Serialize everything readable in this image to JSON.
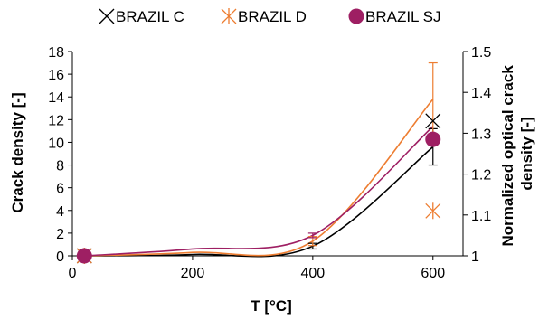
{
  "chart_data": {
    "type": "line",
    "xlabel": "T [°C]",
    "ylabel": "Crack density [-]",
    "y2label_lines": [
      "Normalized optical crack",
      "density [-]"
    ],
    "xlim": [
      0,
      650
    ],
    "ylim": [
      0,
      18
    ],
    "y2lim": [
      1,
      1.5
    ],
    "x_ticks": [
      "0",
      "200",
      "400",
      "600"
    ],
    "y_ticks": [
      "0",
      "2",
      "4",
      "6",
      "8",
      "10",
      "12",
      "14",
      "16",
      "18"
    ],
    "y2_ticks": [
      "1",
      "1.1",
      "1.2",
      "1.3",
      "1.4",
      "1.5"
    ],
    "grid": false,
    "legend_position": "top",
    "series": [
      {
        "name": "BRAZIL C",
        "color": "#000000",
        "marker": "x-cross",
        "line": [
          {
            "x": 20,
            "y": 0
          },
          {
            "x": 200,
            "y": 0.12
          },
          {
            "x": 400,
            "y": 0.85
          },
          {
            "x": 600,
            "y": 9.6
          }
        ],
        "errors": [
          {
            "x": 400,
            "y": 0.85,
            "lo": 0.6,
            "hi": 1.1
          },
          {
            "x": 600,
            "y": 9.6,
            "lo": 8.0,
            "hi": 11.2
          }
        ],
        "points_y2": [
          {
            "x": 20,
            "y": 1.0
          },
          {
            "x": 600,
            "y": 1.33
          }
        ]
      },
      {
        "name": "BRAZIL D",
        "color": "#ED7D31",
        "marker": "asterisk",
        "line": [
          {
            "x": 20,
            "y": 0
          },
          {
            "x": 200,
            "y": 0.3
          },
          {
            "x": 400,
            "y": 1.3
          },
          {
            "x": 600,
            "y": 13.8
          }
        ],
        "errors": [
          {
            "x": 400,
            "y": 1.3,
            "lo": 0.9,
            "hi": 1.7
          },
          {
            "x": 600,
            "y": 13.8,
            "lo": 10.6,
            "hi": 17.0
          }
        ],
        "points_y2": [
          {
            "x": 20,
            "y": 1.0
          },
          {
            "x": 600,
            "y": 1.11
          }
        ]
      },
      {
        "name": "BRAZIL SJ",
        "color": "#9E1F63",
        "marker": "circle",
        "line": [
          {
            "x": 20,
            "y": 0
          },
          {
            "x": 200,
            "y": 0.6
          },
          {
            "x": 400,
            "y": 1.8
          },
          {
            "x": 600,
            "y": 11.4
          }
        ],
        "errors": [
          {
            "x": 400,
            "y": 1.8,
            "lo": 1.6,
            "hi": 2.0
          }
        ],
        "points_y2": [
          {
            "x": 20,
            "y": 1.0
          },
          {
            "x": 600,
            "y": 1.285
          }
        ]
      }
    ]
  }
}
